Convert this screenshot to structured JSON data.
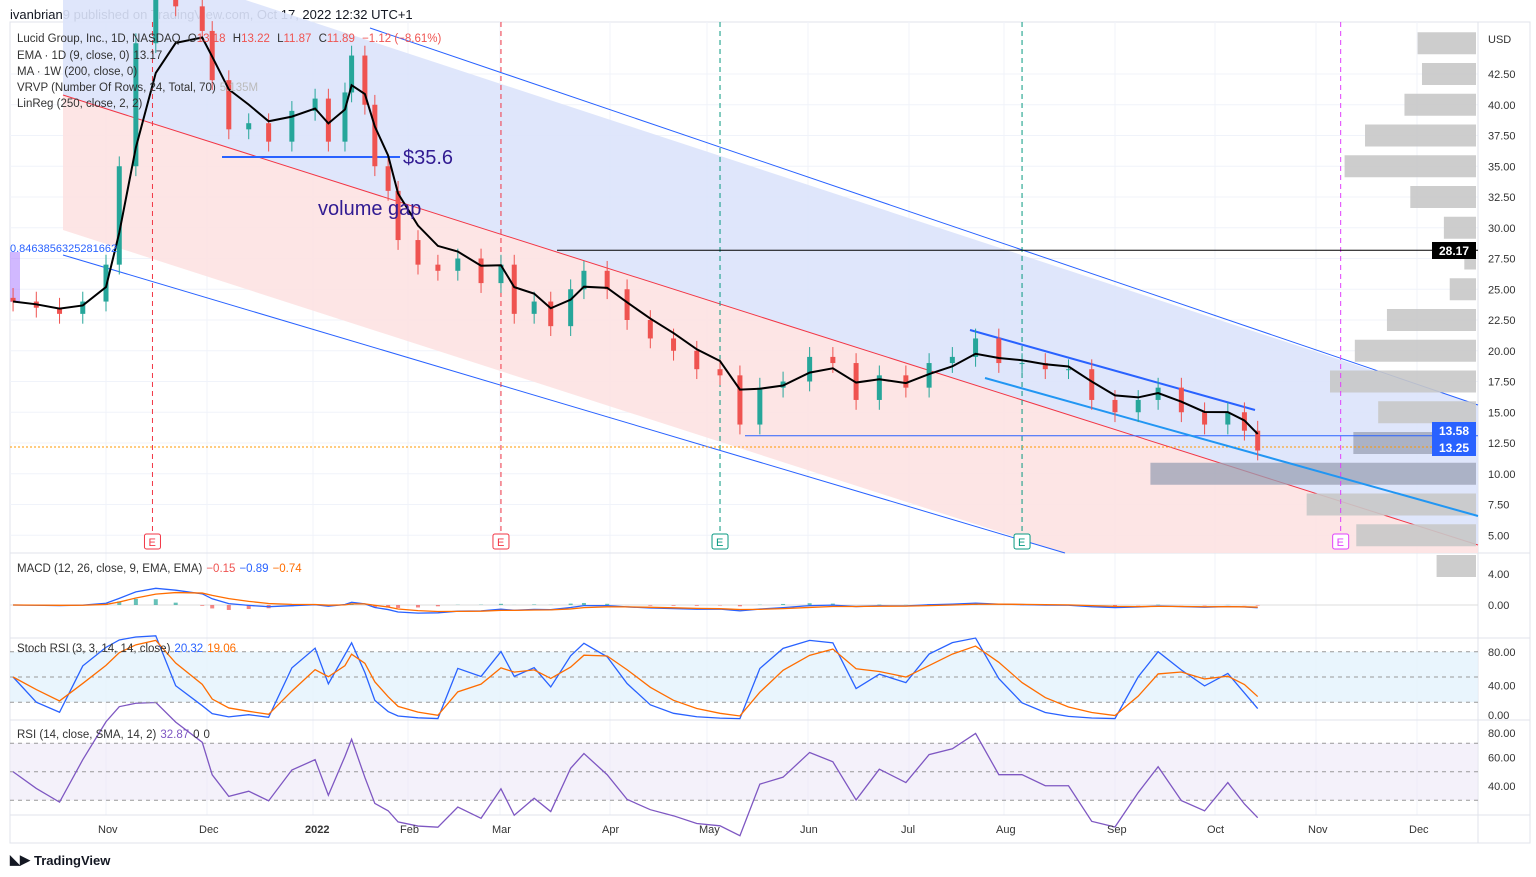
{
  "header": {
    "published": "ivanbrian9 published on TradingView.com, Oct 17, 2022 12:32 UTC+1"
  },
  "legend": {
    "symbol": "Lucid Group, Inc., 1D, NASDAQ",
    "o_label": "O",
    "o": "13.18",
    "h_label": "H",
    "h": "13.22",
    "l_label": "L",
    "l": "11.87",
    "c_label": "C",
    "c": "11.89",
    "chg": "−1.12 (−8.61%)",
    "ema": "EMA · 1D (9, close, 0)",
    "ema_val": "13.17",
    "ma": "MA · 1W (200, close, 0)",
    "vrvp": "VRVP (Number Of Rows, 24, Total, 70)",
    "vrvp_val": "5.135M",
    "linreg": "LinReg (250, close, 2, 2)"
  },
  "indicators": {
    "macd": {
      "label": "MACD (12, 26, close, 9, EMA, EMA)",
      "hist": "−0.15",
      "macd": "−0.89",
      "signal": "−0.74",
      "ticks": [
        "4.00",
        "0.00"
      ]
    },
    "stoch": {
      "label": "Stoch RSI (3, 3, 14, 14, close)",
      "k": "20.32",
      "d": "19.06",
      "ticks": [
        "80.00",
        "40.00",
        "0.00"
      ]
    },
    "rsi": {
      "label": "RSI (14, close, SMA, 14, 2)",
      "rsi": "32.87",
      "v1": "0",
      "v2": "0",
      "ticks": [
        "80.00",
        "60.00",
        "40.00"
      ]
    }
  },
  "annotations": {
    "level_text": "$35.6",
    "gap_text": "volume gap",
    "linreg_corr": "0.8463856325281662",
    "earnings_marker": "E"
  },
  "price_labels": {
    "currency": "USD",
    "level_high": "28.17",
    "level_mid": "13.58",
    "last": "13.25"
  },
  "footer": {
    "brand": "TradingView"
  },
  "colors": {
    "up": "#26a69a",
    "down": "#ef5350",
    "ema": "#000000",
    "channel_upper_fill": "#dbe3fb",
    "channel_lower_fill": "#fde2e2",
    "channel_line": "#2962ff",
    "mid_line": "#f23645",
    "last_label": "#2962ff",
    "macd": "#2962ff",
    "signal": "#ff6d00",
    "rsi": "#7e57c2"
  },
  "chart_data": {
    "type": "candlestick",
    "title": "Lucid Group, Inc., 1D, NASDAQ",
    "y_ticks": [
      "42.50",
      "40.00",
      "37.50",
      "35.00",
      "32.50",
      "30.00",
      "27.50",
      "25.00",
      "22.50",
      "20.00",
      "17.50",
      "15.00",
      "12.50",
      "10.00",
      "7.50",
      "5.00"
    ],
    "ylim": [
      5,
      45
    ],
    "x_ticks": [
      "Nov",
      "Dec",
      "2022",
      "Feb",
      "Mar",
      "Apr",
      "May",
      "Jun",
      "Jul",
      "Aug",
      "Sep",
      "Oct",
      "Nov",
      "Dec"
    ],
    "closes": [
      [
        "2021-10-04",
        24
      ],
      [
        "2021-10-11",
        23.5
      ],
      [
        "2021-10-18",
        23
      ],
      [
        "2021-10-25",
        24
      ],
      [
        "2021-11-01",
        27
      ],
      [
        "2021-11-05",
        35
      ],
      [
        "2021-11-10",
        45
      ],
      [
        "2021-11-16",
        50
      ],
      [
        "2021-11-22",
        48
      ],
      [
        "2021-11-30",
        46
      ],
      [
        "2021-12-03",
        42
      ],
      [
        "2021-12-08",
        38
      ],
      [
        "2021-12-14",
        38.5
      ],
      [
        "2021-12-20",
        37
      ],
      [
        "2021-12-27",
        39.5
      ],
      [
        "2022-01-03",
        40.5
      ],
      [
        "2022-01-07",
        37
      ],
      [
        "2022-01-12",
        41
      ],
      [
        "2022-01-14",
        44
      ],
      [
        "2022-01-18",
        40
      ],
      [
        "2022-01-21",
        35
      ],
      [
        "2022-01-25",
        33
      ],
      [
        "2022-01-28",
        29
      ],
      [
        "2022-02-03",
        27
      ],
      [
        "2022-02-09",
        26.5
      ],
      [
        "2022-02-15",
        27.5
      ],
      [
        "2022-02-22",
        25.5
      ],
      [
        "2022-02-28",
        27
      ],
      [
        "2022-03-04",
        23
      ],
      [
        "2022-03-10",
        24
      ],
      [
        "2022-03-15",
        22
      ],
      [
        "2022-03-21",
        25
      ],
      [
        "2022-03-25",
        26.5
      ],
      [
        "2022-04-01",
        25
      ],
      [
        "2022-04-07",
        22.5
      ],
      [
        "2022-04-14",
        21
      ],
      [
        "2022-04-21",
        20
      ],
      [
        "2022-04-28",
        18.5
      ],
      [
        "2022-05-05",
        18
      ],
      [
        "2022-05-11",
        14
      ],
      [
        "2022-05-17",
        17
      ],
      [
        "2022-05-24",
        17.5
      ],
      [
        "2022-06-01",
        19.5
      ],
      [
        "2022-06-08",
        19
      ],
      [
        "2022-06-15",
        16
      ],
      [
        "2022-06-22",
        18
      ],
      [
        "2022-06-30",
        17
      ],
      [
        "2022-07-07",
        19
      ],
      [
        "2022-07-14",
        19.5
      ],
      [
        "2022-07-21",
        21
      ],
      [
        "2022-07-28",
        19
      ],
      [
        "2022-08-04",
        19
      ],
      [
        "2022-08-11",
        18.5
      ],
      [
        "2022-08-18",
        18.5
      ],
      [
        "2022-08-25",
        16
      ],
      [
        "2022-09-01",
        15
      ],
      [
        "2022-09-08",
        16
      ],
      [
        "2022-09-14",
        17
      ],
      [
        "2022-09-21",
        15
      ],
      [
        "2022-09-28",
        14
      ],
      [
        "2022-10-05",
        15
      ],
      [
        "2022-10-10",
        13.5
      ],
      [
        "2022-10-14",
        11.89
      ]
    ],
    "horizontal_levels": [
      35.6,
      28.17,
      13.58
    ],
    "earnings": [
      {
        "date": "2021-11-15",
        "status": "past"
      },
      {
        "date": "2022-02-28",
        "status": "past"
      },
      {
        "date": "2022-05-05",
        "status": "beat"
      },
      {
        "date": "2022-08-04",
        "status": "beat"
      },
      {
        "date": "2022-11-08",
        "status": "upcoming"
      }
    ],
    "volume_profile": [
      {
        "price": 45,
        "vol": 0.4
      },
      {
        "price": 42.5,
        "vol": 0.37
      },
      {
        "price": 40,
        "vol": 0.49
      },
      {
        "price": 37.5,
        "vol": 0.76
      },
      {
        "price": 35,
        "vol": 0.9
      },
      {
        "price": 32.5,
        "vol": 0.45
      },
      {
        "price": 30,
        "vol": 0.22
      },
      {
        "price": 27.5,
        "vol": 0.08
      },
      {
        "price": 25,
        "vol": 0.18
      },
      {
        "price": 22.5,
        "vol": 0.61
      },
      {
        "price": 20,
        "vol": 0.83
      },
      {
        "price": 17.5,
        "vol": 1.0
      },
      {
        "price": 15,
        "vol": 0.67
      },
      {
        "price": 12.5,
        "vol": 0.84
      },
      {
        "price": 10,
        "vol": 2.23
      },
      {
        "price": 7.5,
        "vol": 1.16
      },
      {
        "price": 5,
        "vol": 0.82
      },
      {
        "price": 2.5,
        "vol": 0.27
      }
    ]
  }
}
